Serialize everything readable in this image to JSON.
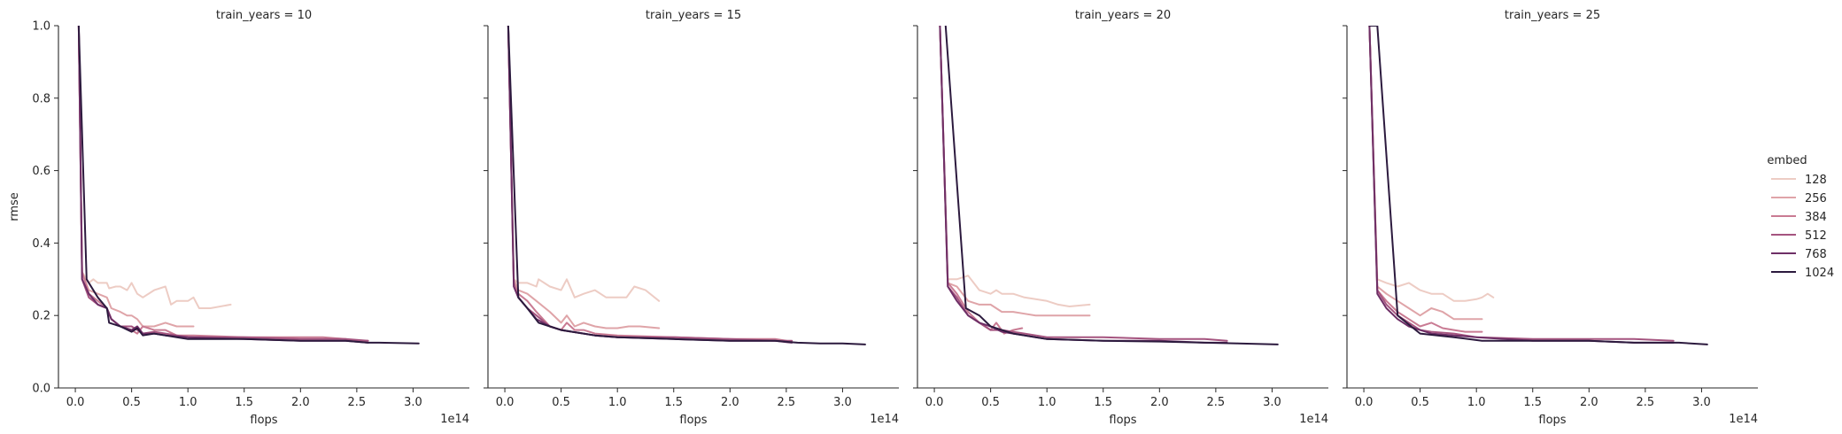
{
  "chart_data": {
    "type": "line",
    "layout": "facet-grid",
    "facet_variable": "train_years",
    "panels": [
      {
        "title": "train_years = 10",
        "series": [
          {
            "embed": "128",
            "x": [
              0.03,
              0.06,
              0.12,
              0.16,
              0.2,
              0.24,
              0.28,
              0.3,
              0.36,
              0.4,
              0.46,
              0.5,
              0.55,
              0.6,
              0.7,
              0.8,
              0.85,
              0.9,
              1.0,
              1.05,
              1.1,
              1.2,
              1.38
            ],
            "y": [
              1.0,
              0.32,
              0.29,
              0.3,
              0.29,
              0.29,
              0.29,
              0.275,
              0.28,
              0.28,
              0.27,
              0.29,
              0.26,
              0.25,
              0.27,
              0.28,
              0.23,
              0.24,
              0.24,
              0.25,
              0.22,
              0.22,
              0.23
            ]
          },
          {
            "embed": "256",
            "x": [
              0.03,
              0.06,
              0.12,
              0.2,
              0.28,
              0.32,
              0.4,
              0.46,
              0.5,
              0.55,
              0.6,
              0.7,
              0.8,
              0.9,
              1.05
            ],
            "y": [
              1.0,
              0.32,
              0.27,
              0.26,
              0.25,
              0.22,
              0.21,
              0.2,
              0.2,
              0.19,
              0.17,
              0.17,
              0.18,
              0.17,
              0.17
            ]
          },
          {
            "embed": "384",
            "x": [
              0.03,
              0.06,
              0.12,
              0.2,
              0.28,
              0.32,
              0.4,
              0.5,
              0.55,
              0.6,
              0.7,
              0.8,
              0.9,
              1.05,
              1.5,
              2.0,
              2.2,
              2.4,
              2.5,
              2.6
            ],
            "y": [
              1.0,
              0.32,
              0.26,
              0.24,
              0.22,
              0.19,
              0.17,
              0.16,
              0.15,
              0.17,
              0.16,
              0.16,
              0.145,
              0.145,
              0.14,
              0.14,
              0.14,
              0.135,
              0.13,
              0.13
            ]
          },
          {
            "embed": "512",
            "x": [
              0.03,
              0.06,
              0.12,
              0.2,
              0.28,
              0.32,
              0.4,
              0.5,
              0.55,
              0.6,
              0.7,
              0.8,
              1.0,
              1.5,
              2.0,
              2.4,
              2.6
            ],
            "y": [
              1.0,
              0.3,
              0.25,
              0.23,
              0.22,
              0.19,
              0.17,
              0.17,
              0.16,
              0.15,
              0.155,
              0.15,
              0.14,
              0.14,
              0.135,
              0.135,
              0.13
            ]
          },
          {
            "embed": "768",
            "x": [
              0.03,
              0.06,
              0.12,
              0.2,
              0.28,
              0.32,
              0.4,
              0.5,
              0.55,
              0.6,
              0.7,
              0.8,
              1.0,
              1.5,
              2.0,
              2.4,
              2.6
            ],
            "y": [
              1.0,
              0.3,
              0.26,
              0.23,
              0.22,
              0.19,
              0.17,
              0.16,
              0.17,
              0.15,
              0.15,
              0.145,
              0.14,
              0.135,
              0.13,
              0.13,
              0.125
            ]
          },
          {
            "embed": "1024",
            "x": [
              0.03,
              0.1,
              0.2,
              0.28,
              0.3,
              0.4,
              0.5,
              0.55,
              0.6,
              0.7,
              0.8,
              1.0,
              1.5,
              2.0,
              2.4,
              2.6,
              2.7,
              3.05
            ],
            "y": [
              1.0,
              0.3,
              0.25,
              0.22,
              0.18,
              0.17,
              0.155,
              0.165,
              0.145,
              0.15,
              0.145,
              0.135,
              0.135,
              0.13,
              0.13,
              0.125,
              0.125,
              0.123
            ]
          }
        ]
      },
      {
        "title": "train_years = 15",
        "series": [
          {
            "embed": "128",
            "x": [
              0.03,
              0.08,
              0.12,
              0.2,
              0.28,
              0.3,
              0.4,
              0.5,
              0.55,
              0.62,
              0.7,
              0.8,
              0.9,
              1.0,
              1.08,
              1.15,
              1.25,
              1.37
            ],
            "y": [
              1.0,
              0.3,
              0.29,
              0.29,
              0.28,
              0.3,
              0.28,
              0.27,
              0.3,
              0.25,
              0.26,
              0.27,
              0.25,
              0.25,
              0.25,
              0.28,
              0.27,
              0.24
            ]
          },
          {
            "embed": "256",
            "x": [
              0.03,
              0.08,
              0.12,
              0.2,
              0.28,
              0.4,
              0.5,
              0.55,
              0.62,
              0.7,
              0.8,
              0.9,
              1.0,
              1.1,
              1.2,
              1.37
            ],
            "y": [
              1.0,
              0.3,
              0.27,
              0.26,
              0.24,
              0.21,
              0.18,
              0.2,
              0.17,
              0.18,
              0.17,
              0.165,
              0.165,
              0.17,
              0.17,
              0.165
            ]
          },
          {
            "embed": "384",
            "x": [
              0.03,
              0.08,
              0.12,
              0.2,
              0.28,
              0.4,
              0.5,
              0.55,
              0.62,
              0.7,
              0.8,
              1.0,
              1.5,
              2.0,
              2.4,
              2.5
            ],
            "y": [
              1.0,
              0.29,
              0.26,
              0.24,
              0.21,
              0.17,
              0.16,
              0.18,
              0.16,
              0.16,
              0.15,
              0.145,
              0.14,
              0.135,
              0.135,
              0.13
            ]
          },
          {
            "embed": "512",
            "x": [
              0.03,
              0.08,
              0.12,
              0.2,
              0.28,
              0.4,
              0.5,
              0.6,
              0.7,
              0.8,
              1.0,
              1.5,
              2.0,
              2.4,
              2.55
            ],
            "y": [
              1.0,
              0.28,
              0.25,
              0.22,
              0.2,
              0.17,
              0.16,
              0.155,
              0.15,
              0.145,
              0.14,
              0.14,
              0.135,
              0.13,
              0.13
            ]
          },
          {
            "embed": "768",
            "x": [
              0.03,
              0.08,
              0.12,
              0.2,
              0.28,
              0.4,
              0.5,
              0.6,
              0.7,
              0.8,
              1.0,
              1.5,
              2.0,
              2.4,
              2.55
            ],
            "y": [
              1.0,
              0.28,
              0.25,
              0.22,
              0.19,
              0.17,
              0.16,
              0.155,
              0.15,
              0.145,
              0.14,
              0.135,
              0.13,
              0.13,
              0.125
            ]
          },
          {
            "embed": "1024",
            "x": [
              0.03,
              0.12,
              0.2,
              0.3,
              0.4,
              0.5,
              0.6,
              0.8,
              1.0,
              1.5,
              2.0,
              2.4,
              2.6,
              2.8,
              3.0,
              3.2
            ],
            "y": [
              1.0,
              0.25,
              0.22,
              0.18,
              0.17,
              0.16,
              0.155,
              0.145,
              0.14,
              0.135,
              0.13,
              0.13,
              0.125,
              0.123,
              0.123,
              0.12
            ]
          }
        ]
      },
      {
        "title": "train_years = 20",
        "series": [
          {
            "embed": "128",
            "x": [
              0.05,
              0.12,
              0.2,
              0.3,
              0.4,
              0.5,
              0.55,
              0.6,
              0.7,
              0.8,
              0.9,
              1.0,
              1.1,
              1.2,
              1.38
            ],
            "y": [
              1.0,
              0.3,
              0.3,
              0.31,
              0.27,
              0.26,
              0.27,
              0.26,
              0.26,
              0.25,
              0.245,
              0.24,
              0.23,
              0.225,
              0.23
            ]
          },
          {
            "embed": "256",
            "x": [
              0.05,
              0.12,
              0.2,
              0.3,
              0.4,
              0.5,
              0.6,
              0.7,
              0.8,
              0.9,
              1.0,
              1.2,
              1.38
            ],
            "y": [
              1.0,
              0.29,
              0.28,
              0.24,
              0.23,
              0.23,
              0.21,
              0.21,
              0.205,
              0.2,
              0.2,
              0.2,
              0.2
            ]
          },
          {
            "embed": "384",
            "x": [
              0.05,
              0.12,
              0.2,
              0.3,
              0.4,
              0.5,
              0.55,
              0.62,
              0.7,
              0.78
            ],
            "y": [
              1.0,
              0.29,
              0.26,
              0.21,
              0.18,
              0.16,
              0.18,
              0.15,
              0.16,
              0.165
            ]
          },
          {
            "embed": "512",
            "x": [
              0.05,
              0.12,
              0.2,
              0.3,
              0.4,
              0.5,
              0.6,
              0.7,
              0.8,
              1.0,
              1.5,
              2.0,
              2.4,
              2.6
            ],
            "y": [
              1.0,
              0.28,
              0.25,
              0.2,
              0.18,
              0.16,
              0.16,
              0.155,
              0.15,
              0.14,
              0.14,
              0.135,
              0.135,
              0.13
            ]
          },
          {
            "embed": "768",
            "x": [
              0.05,
              0.12,
              0.2,
              0.3,
              0.4,
              0.5,
              0.6,
              0.7,
              0.8,
              1.0,
              1.5,
              2.0,
              2.4,
              2.6
            ],
            "y": [
              1.0,
              0.28,
              0.24,
              0.2,
              0.18,
              0.17,
              0.155,
              0.15,
              0.145,
              0.135,
              0.13,
              0.13,
              0.125,
              0.125
            ]
          },
          {
            "embed": "1024",
            "x": [
              0.1,
              0.28,
              0.4,
              0.5,
              0.6,
              0.7,
              0.8,
              1.0,
              1.5,
              2.0,
              2.4,
              2.7,
              3.05
            ],
            "y": [
              1.0,
              0.22,
              0.2,
              0.17,
              0.16,
              0.15,
              0.145,
              0.135,
              0.13,
              0.128,
              0.125,
              0.123,
              0.12
            ]
          }
        ]
      },
      {
        "title": "train_years = 25",
        "series": [
          {
            "embed": "128",
            "x": [
              0.05,
              0.12,
              0.2,
              0.3,
              0.4,
              0.5,
              0.6,
              0.7,
              0.8,
              0.9,
              1.0,
              1.05,
              1.1,
              1.15
            ],
            "y": [
              1.0,
              0.3,
              0.29,
              0.28,
              0.29,
              0.27,
              0.26,
              0.26,
              0.24,
              0.24,
              0.245,
              0.25,
              0.26,
              0.25
            ]
          },
          {
            "embed": "256",
            "x": [
              0.05,
              0.12,
              0.2,
              0.3,
              0.4,
              0.5,
              0.6,
              0.7,
              0.8,
              0.9,
              1.05
            ],
            "y": [
              1.0,
              0.28,
              0.26,
              0.24,
              0.22,
              0.2,
              0.22,
              0.21,
              0.19,
              0.19,
              0.19
            ]
          },
          {
            "embed": "384",
            "x": [
              0.05,
              0.12,
              0.2,
              0.3,
              0.4,
              0.5,
              0.6,
              0.7,
              0.8,
              0.9,
              1.05
            ],
            "y": [
              1.0,
              0.27,
              0.24,
              0.21,
              0.19,
              0.17,
              0.18,
              0.165,
              0.16,
              0.155,
              0.155
            ]
          },
          {
            "embed": "512",
            "x": [
              0.05,
              0.12,
              0.2,
              0.3,
              0.4,
              0.5,
              0.6,
              0.8,
              1.0,
              1.5,
              2.0,
              2.4,
              2.75
            ],
            "y": [
              1.0,
              0.27,
              0.23,
              0.2,
              0.18,
              0.16,
              0.155,
              0.15,
              0.14,
              0.135,
              0.135,
              0.135,
              0.13
            ]
          },
          {
            "embed": "768",
            "x": [
              0.05,
              0.12,
              0.2,
              0.3,
              0.4,
              0.5,
              0.6,
              0.8,
              1.0,
              1.5,
              2.0,
              2.4,
              2.75
            ],
            "y": [
              1.0,
              0.26,
              0.22,
              0.19,
              0.17,
              0.16,
              0.15,
              0.145,
              0.14,
              0.13,
              0.13,
              0.125,
              0.125
            ]
          },
          {
            "embed": "1024",
            "x": [
              0.05,
              0.12,
              0.3,
              0.5,
              0.8,
              1.05,
              1.5,
              2.0,
              2.4,
              2.8,
              3.05
            ],
            "y": [
              1.0,
              1.0,
              0.2,
              0.15,
              0.14,
              0.13,
              0.13,
              0.13,
              0.125,
              0.125,
              0.12
            ]
          }
        ]
      }
    ],
    "xlabel": "flops",
    "ylabel": "rmse",
    "x_offset_label": "1e14",
    "xlim": [
      -0.15,
      3.5
    ],
    "ylim": [
      0.0,
      1.0
    ],
    "xticks": [
      "0.0",
      "0.5",
      "1.0",
      "1.5",
      "2.0",
      "2.5",
      "3.0"
    ],
    "xtick_values": [
      0.0,
      0.5,
      1.0,
      1.5,
      2.0,
      2.5,
      3.0
    ],
    "yticks": [
      "0.0",
      "0.2",
      "0.4",
      "0.6",
      "0.8",
      "1.0"
    ],
    "ytick_values": [
      0.0,
      0.2,
      0.4,
      0.6,
      0.8,
      1.0
    ],
    "grid": false,
    "legend": {
      "title": "embed",
      "placement": "right",
      "entries": [
        {
          "label": "128",
          "color": "#edccc4"
        },
        {
          "label": "256",
          "color": "#dfa4a8"
        },
        {
          "label": "384",
          "color": "#c97b93"
        },
        {
          "label": "512",
          "color": "#a5547f"
        },
        {
          "label": "768",
          "color": "#6e2f66"
        },
        {
          "label": "1024",
          "color": "#2c1a3e"
        }
      ]
    }
  }
}
